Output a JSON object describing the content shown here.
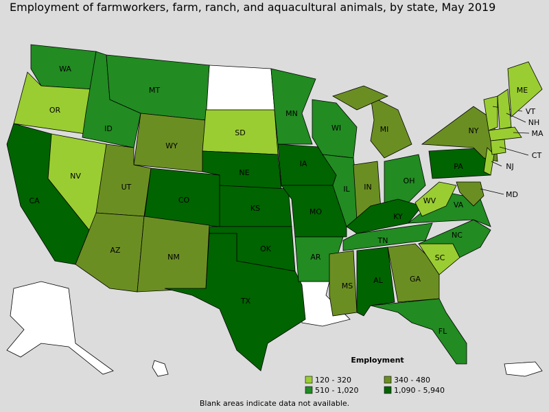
{
  "title": "Employment of farmworkers, farm, ranch, and aquacultural animals, by state, May 2019",
  "legend": {
    "title": "Employment",
    "items": [
      {
        "label": "120 - 320",
        "color": "#9acd32"
      },
      {
        "label": "340 - 480",
        "color": "#6b8e23"
      },
      {
        "label": "510 - 1,020",
        "color": "#228b22"
      },
      {
        "label": "1,090 - 5,940",
        "color": "#006400"
      }
    ]
  },
  "states": [
    {
      "label": "WA",
      "class": 2
    },
    {
      "label": "OR",
      "class": 0
    },
    {
      "label": "CA",
      "class": 3
    },
    {
      "label": "NV",
      "class": 0
    },
    {
      "label": "ID",
      "class": 2
    },
    {
      "label": "MT",
      "class": 2
    },
    {
      "label": "WY",
      "class": 1
    },
    {
      "label": "UT",
      "class": 1
    },
    {
      "label": "AZ",
      "class": 1
    },
    {
      "label": "CO",
      "class": 3
    },
    {
      "label": "NM",
      "class": 1
    },
    {
      "label": "SD",
      "class": 0
    },
    {
      "label": "NE",
      "class": 3
    },
    {
      "label": "KS",
      "class": 3
    },
    {
      "label": "OK",
      "class": 3
    },
    {
      "label": "TX",
      "class": 3
    },
    {
      "label": "MN",
      "class": 2
    },
    {
      "label": "IA",
      "class": 3
    },
    {
      "label": "MO",
      "class": 3
    },
    {
      "label": "AR",
      "class": 2
    },
    {
      "label": "WI",
      "class": 2
    },
    {
      "label": "IL",
      "class": 2
    },
    {
      "label": "MI",
      "class": 1
    },
    {
      "label": "IN",
      "class": 1
    },
    {
      "label": "OH",
      "class": 2
    },
    {
      "label": "KY",
      "class": 3
    },
    {
      "label": "TN",
      "class": 2
    },
    {
      "label": "MS",
      "class": 1
    },
    {
      "label": "AL",
      "class": 3
    },
    {
      "label": "GA",
      "class": 1
    },
    {
      "label": "FL",
      "class": 2
    },
    {
      "label": "SC",
      "class": 0
    },
    {
      "label": "NC",
      "class": 2
    },
    {
      "label": "VA",
      "class": 2
    },
    {
      "label": "WV",
      "class": 0
    },
    {
      "label": "PA",
      "class": 3
    },
    {
      "label": "NY",
      "class": 1
    },
    {
      "label": "MD",
      "class": 1
    },
    {
      "label": "NJ",
      "class": 0
    },
    {
      "label": "VT",
      "class": 0
    },
    {
      "label": "NH",
      "class": 0
    },
    {
      "label": "ME",
      "class": 0
    },
    {
      "label": "MA",
      "class": 0
    },
    {
      "label": "CT",
      "class": 0
    }
  ],
  "note": "Blank areas indicate data not available."
}
